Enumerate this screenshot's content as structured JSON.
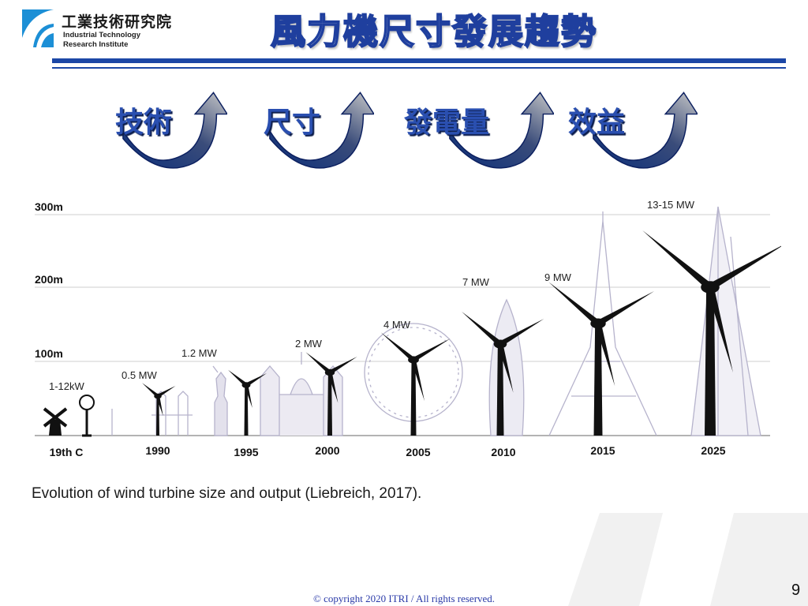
{
  "logo": {
    "name_cn": "工業技術研究院",
    "name_en_line1": "Industrial Technology",
    "name_en_line2": "Research Institute"
  },
  "title": "風力機尺寸發展趨勢",
  "keywords": [
    "技術",
    "尺寸",
    "發電量",
    "效益"
  ],
  "figure": {
    "height_axis_labels": [
      "300m",
      "200m",
      "100m"
    ],
    "eras": [
      {
        "year": "19th C",
        "power": "1-12kW"
      },
      {
        "year": "1990",
        "power": "0.5 MW"
      },
      {
        "year": "1995",
        "power": "1.2 MW"
      },
      {
        "year": "2000",
        "power": "2 MW"
      },
      {
        "year": "2005",
        "power": "4 MW"
      },
      {
        "year": "2010",
        "power": "7 MW"
      },
      {
        "year": "2015",
        "power": "9 MW"
      },
      {
        "year": "2025",
        "power": "13-15 MW"
      }
    ]
  },
  "caption": "Evolution of wind turbine size and output (Liebreich, 2017).",
  "footer": {
    "copyright": "© copyright 2020 ITRI / All rights reserved.",
    "page_number": "9"
  },
  "colors": {
    "brand_blue": "#1c47a6",
    "keyword_blue": "#2a4fb0"
  }
}
